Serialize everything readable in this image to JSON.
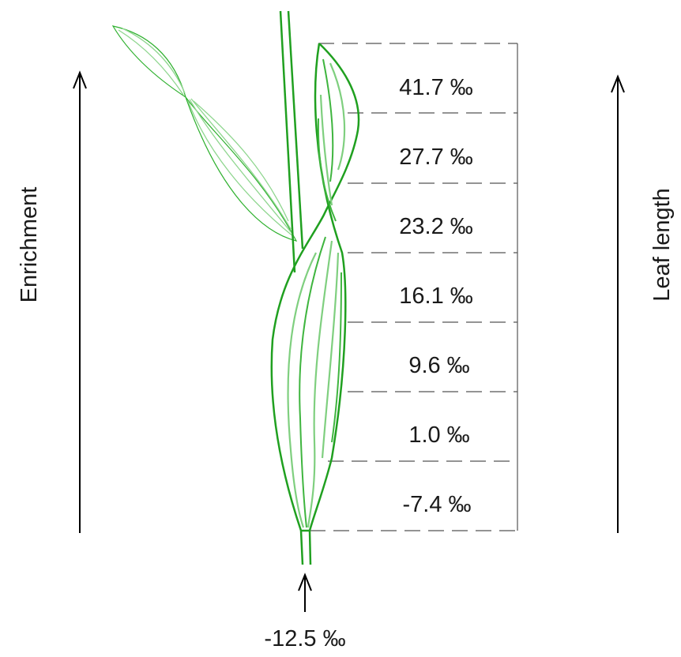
{
  "diagram": {
    "left_axis_label": "Enrichment",
    "right_axis_label": "Leaf length",
    "input_value": "-12.5 ‰",
    "segments": [
      {
        "label": "41.7 ‰"
      },
      {
        "label": "27.7 ‰"
      },
      {
        "label": "23.2 ‰"
      },
      {
        "label": "16.1 ‰"
      },
      {
        "label": "9.6 ‰"
      },
      {
        "label": "1.0 ‰"
      },
      {
        "label": "-7.4 ‰"
      }
    ],
    "colors": {
      "leaf_outline": "#20a020",
      "leaf_vein": "#7fcf7f",
      "guide_lines": "#555555",
      "arrows": "#000000"
    }
  }
}
